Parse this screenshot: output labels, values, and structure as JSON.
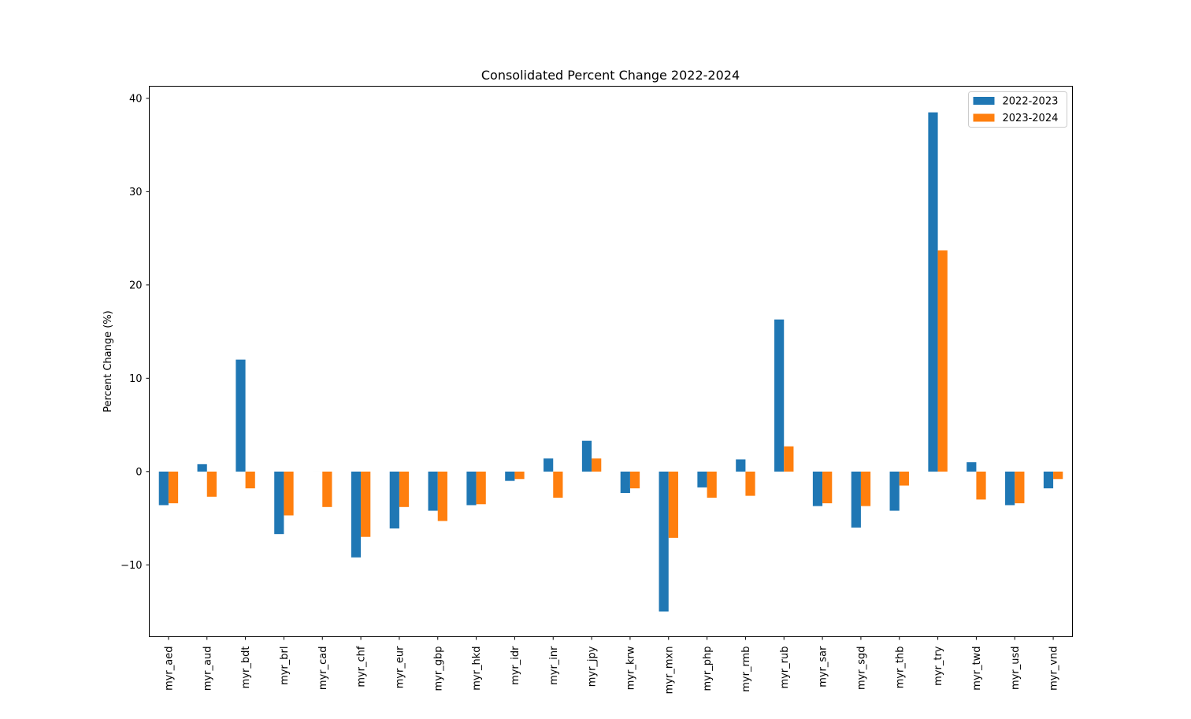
{
  "chart_data": {
    "type": "bar",
    "title": "Consolidated Percent Change 2022-2024",
    "xlabel": "",
    "ylabel": "Percent Change (%)",
    "ylim": [
      -17.7,
      41.3
    ],
    "yticks": [
      -10,
      0,
      10,
      20,
      30,
      40
    ],
    "ytick_labels": [
      "−10",
      "0",
      "10",
      "20",
      "30",
      "40"
    ],
    "grid": false,
    "legend_position": "top-right",
    "categories": [
      "myr_aed",
      "myr_aud",
      "myr_bdt",
      "myr_brl",
      "myr_cad",
      "myr_chf",
      "myr_eur",
      "myr_gbp",
      "myr_hkd",
      "myr_idr",
      "myr_inr",
      "myr_jpy",
      "myr_krw",
      "myr_mxn",
      "myr_php",
      "myr_rmb",
      "myr_rub",
      "myr_sar",
      "myr_sgd",
      "myr_thb",
      "myr_try",
      "myr_twd",
      "myr_usd",
      "myr_vnd"
    ],
    "series": [
      {
        "name": "2022-2023",
        "color": "#1f77b4",
        "values": [
          -3.6,
          0.8,
          12.0,
          -6.7,
          0.0,
          -9.2,
          -6.1,
          -4.2,
          -3.6,
          -1.0,
          1.4,
          3.3,
          -2.3,
          -15.0,
          -1.7,
          1.3,
          16.3,
          -3.7,
          -6.0,
          -4.2,
          38.5,
          1.0,
          -3.6,
          -1.8
        ]
      },
      {
        "name": "2023-2024",
        "color": "#ff7f0e",
        "values": [
          -3.4,
          -2.7,
          -1.8,
          -4.7,
          -3.8,
          -7.0,
          -3.8,
          -5.3,
          -3.5,
          -0.8,
          -2.8,
          1.4,
          -1.8,
          -7.1,
          -2.8,
          -2.6,
          2.7,
          -3.4,
          -3.7,
          -1.5,
          23.7,
          -3.0,
          -3.4,
          -0.8
        ]
      }
    ]
  }
}
